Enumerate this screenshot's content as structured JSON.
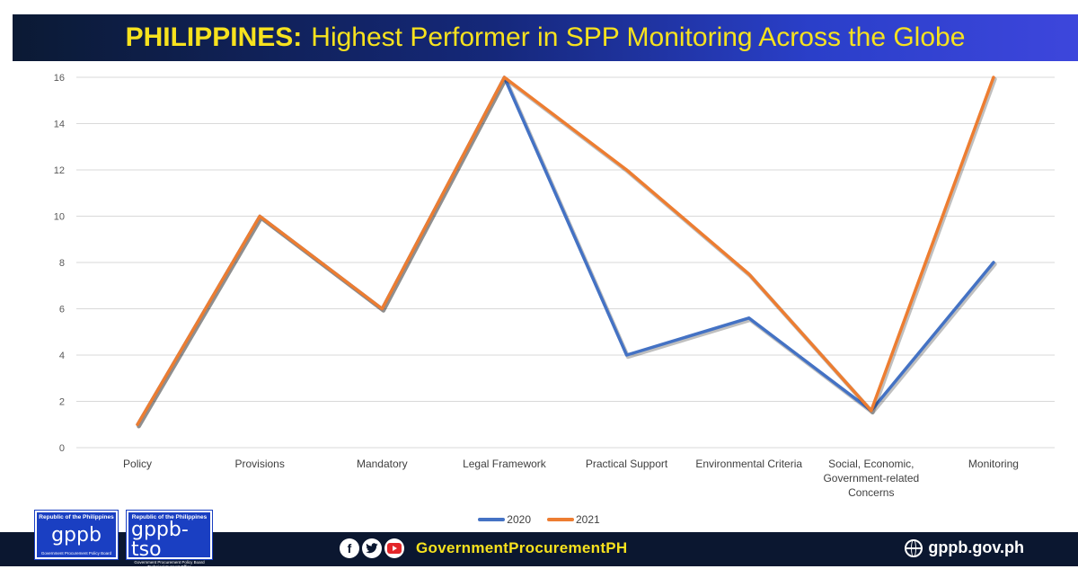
{
  "header": {
    "title_strong": "PHILIPPINES:",
    "title_rest": "Highest Performer in SPP Monitoring Across the Globe"
  },
  "chart_data": {
    "type": "line",
    "categories": [
      [
        "Policy"
      ],
      [
        "Provisions"
      ],
      [
        "Mandatory"
      ],
      [
        "Legal Framework"
      ],
      [
        "Practical Support"
      ],
      [
        "Environmental Criteria"
      ],
      [
        "Social, Economic,",
        "Government-related",
        "Concerns"
      ],
      [
        "Monitoring"
      ]
    ],
    "series": [
      {
        "name": "2020",
        "color": "#4472c4",
        "values": [
          1,
          10,
          6,
          16,
          4,
          5.6,
          1.6,
          8
        ]
      },
      {
        "name": "2021",
        "color": "#ed7d31",
        "values": [
          1,
          10,
          6,
          16,
          12,
          7.5,
          1.6,
          16
        ]
      }
    ],
    "ylim": [
      0,
      16
    ],
    "yticks": [
      0,
      2,
      4,
      6,
      8,
      10,
      12,
      14,
      16
    ],
    "grid": true,
    "legend": "bottom",
    "title": "",
    "xlabel": "",
    "ylabel": ""
  },
  "footer": {
    "social_handle": "GovernmentProcurementPH",
    "website": "gppb.gov.ph",
    "icons": [
      "facebook-icon",
      "twitter-icon",
      "youtube-icon",
      "globe-icon"
    ]
  },
  "logos": [
    {
      "top": "Republic of the Philippines",
      "mark": "gppb",
      "bottom": [
        "Government Procurement Policy Board"
      ]
    },
    {
      "top": "Republic of the Philippines",
      "mark": "gppb-tso",
      "bottom": [
        "Government Procurement Policy Board",
        "Technical Support Office"
      ]
    }
  ]
}
